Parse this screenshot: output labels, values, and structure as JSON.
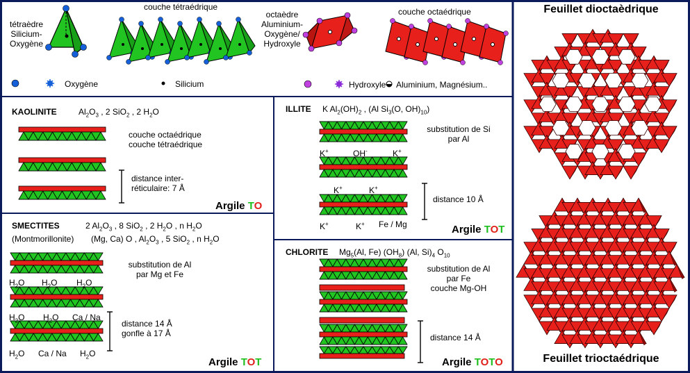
{
  "legend": {
    "tetra_label": "tétraèdre\nSilicium-\nOxygène",
    "tetra_layer": "couche tétraédrique",
    "octa_label": "octaèdre\nAluminium-\nOxygène/\nHydroxyle",
    "octa_layer": "couche octaédrique",
    "oxygen": "Oxygène",
    "silicon": "Silicium",
    "hydroxyl": "Hydroxyle",
    "aluminium": "Aluminium, Magnésium.."
  },
  "kaolinite": {
    "name": "KAOLINITE",
    "formula": "Al2O3 , 2 SiO2 , 2 H2O",
    "octa_label": "couche octaédrique",
    "tetra_label": "couche tétraédrique",
    "distance": "distance inter-\nréticulaire: 7 Å",
    "argile_word": "Argile ",
    "code_green": "T",
    "code_red": "O"
  },
  "smectites": {
    "name": "SMECTITES",
    "sub": "(Montmorillonite)",
    "formula1": "2 Al2O3 , 8 SiO2 , 2 H2O , n H2O",
    "formula2": "(Mg, Ca) O , Al2O3 , 5 SiO2 , n H2O",
    "note": "substitution de Al\npar Mg et Fe",
    "row1": [
      "H2O",
      "H2O",
      "H2O"
    ],
    "row2": [
      "H2O",
      "H2O",
      "Ca / Na"
    ],
    "row3": [
      "H2O",
      "Ca / Na",
      "H2O"
    ],
    "distance": "distance 14 Å\ngonfle à 17 Å",
    "argile_word": "Argile ",
    "code_green": "T",
    "code_red": "O",
    "code_green2": "T"
  },
  "illite": {
    "name": "ILLITE",
    "formula": "K Al2(OH)2 , (Al Si3(O, OH)10)",
    "note": "substitution de Si\npar Al",
    "ion_row1": [
      "K+",
      "OH-",
      "K+"
    ],
    "ion_row2": [
      "K+",
      "K+"
    ],
    "ion_row3": [
      "K+",
      "K+",
      "Fe / Mg"
    ],
    "distance": "distance 10 Å",
    "argile_word": "Argile ",
    "code_green": "T",
    "code_red": "O",
    "code_green2": "T"
  },
  "chlorite": {
    "name": "CHLORITE",
    "formula": "Mg5(Al, Fe) (OH8) (Al, Si)4 O10",
    "note": "substitution de Al\npar Fe\ncouche Mg-OH",
    "distance": "distance 14 Å",
    "argile_word": "Argile ",
    "code_green": "T",
    "code_red": "O",
    "code_green2": "T",
    "code_red2": "O"
  },
  "sheets": {
    "dioctahedral": "Feuillet dioctaèdrique",
    "trioctahedral": "Feuillet trioctaédrique"
  },
  "colors": {
    "green": "#22c422",
    "red": "#e8201c",
    "blue": "#1560d8",
    "purple": "#c040e0",
    "frame": "#0a1a5a"
  }
}
